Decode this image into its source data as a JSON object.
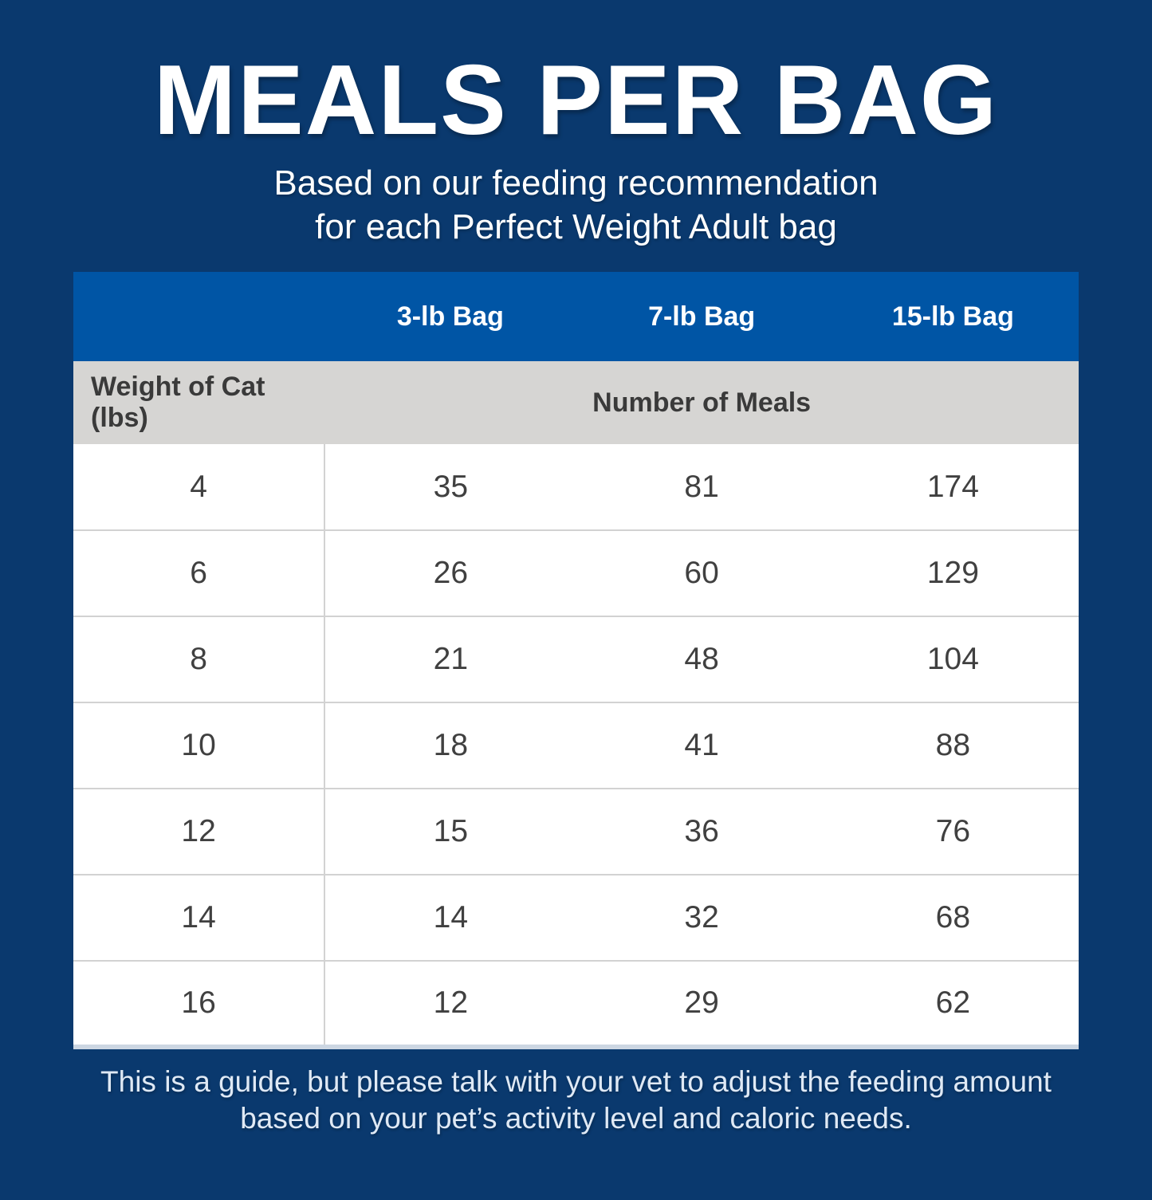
{
  "page": {
    "title": "MEALS PER BAG",
    "subtitle_line1": "Based on our feeding recommendation",
    "subtitle_line2": "for each Perfect Weight Adult bag",
    "footnote_line1": "This is a guide, but please talk with your vet to adjust the feeding amount",
    "footnote_line2": "based on your pet’s activity level and caloric needs."
  },
  "table": {
    "bag_columns": [
      "3-lb Bag",
      "7-lb Bag",
      "15-lb Bag"
    ],
    "weight_header": "Weight of Cat (lbs)",
    "meals_header": "Number of Meals",
    "rows": [
      {
        "weight": "4",
        "meals": [
          "35",
          "81",
          "174"
        ]
      },
      {
        "weight": "6",
        "meals": [
          "26",
          "60",
          "129"
        ]
      },
      {
        "weight": "8",
        "meals": [
          "21",
          "48",
          "104"
        ]
      },
      {
        "weight": "10",
        "meals": [
          "18",
          "41",
          "88"
        ]
      },
      {
        "weight": "12",
        "meals": [
          "15",
          "36",
          "76"
        ]
      },
      {
        "weight": "14",
        "meals": [
          "14",
          "32",
          "68"
        ]
      },
      {
        "weight": "16",
        "meals": [
          "12",
          "29",
          "62"
        ]
      }
    ]
  },
  "chart_data": {
    "type": "table",
    "title": "MEALS PER BAG",
    "columns": [
      "Weight of Cat (lbs)",
      "3-lb Bag",
      "7-lb Bag",
      "15-lb Bag"
    ],
    "rows": [
      [
        4,
        35,
        81,
        174
      ],
      [
        6,
        26,
        60,
        129
      ],
      [
        8,
        21,
        48,
        104
      ],
      [
        10,
        18,
        41,
        88
      ],
      [
        12,
        15,
        36,
        76
      ],
      [
        14,
        14,
        32,
        68
      ],
      [
        16,
        12,
        29,
        62
      ]
    ]
  },
  "colors": {
    "navy": "#0a396e",
    "blue": "#0055a5",
    "gray": "#d6d5d3",
    "divider": "#d2d2d2",
    "edge": "#ccd6e2",
    "ink": "#3a3a3a",
    "cellink": "#404040"
  }
}
